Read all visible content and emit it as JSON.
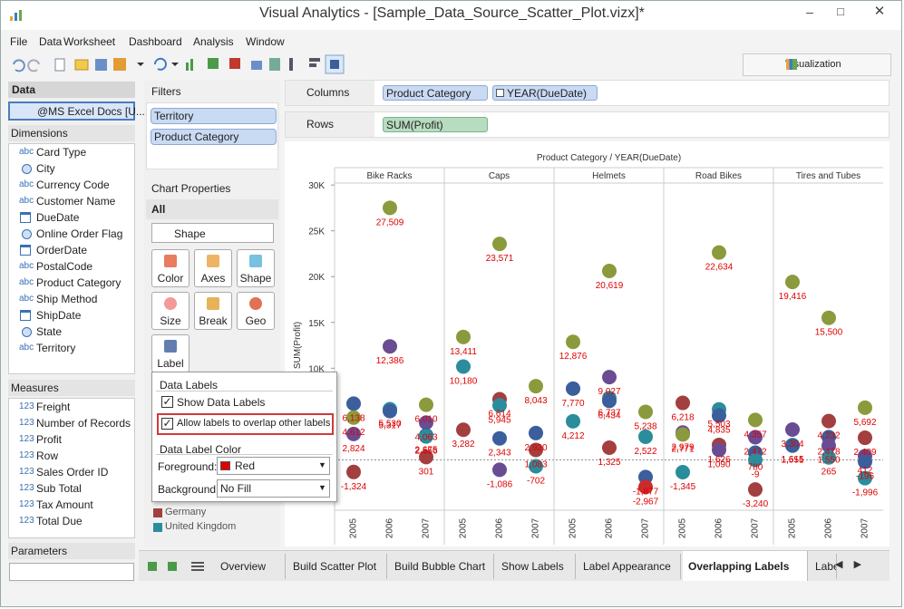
{
  "window": {
    "title": "Visual Analytics - [Sample_Data_Source_Scatter_Plot.vizx]*"
  },
  "menu": [
    "File",
    "Data",
    "Worksheet",
    "Dashboard",
    "Analysis",
    "Window"
  ],
  "visualization_button": "Visualization",
  "data_panel": {
    "title": "Data",
    "source": "@MS Excel Docs [U...",
    "dimensions_title": "Dimensions",
    "dimensions": [
      {
        "icon_text": "abc",
        "name": "Card Type"
      },
      {
        "icon": "geo",
        "name": "City"
      },
      {
        "icon_text": "abc",
        "name": "Currency Code"
      },
      {
        "icon_text": "abc",
        "name": "Customer Name"
      },
      {
        "icon": "date",
        "name": "DueDate"
      },
      {
        "icon": "geo",
        "name": "Online Order Flag"
      },
      {
        "icon": "date",
        "name": "OrderDate"
      },
      {
        "icon_text": "abc",
        "name": "PostalCode"
      },
      {
        "icon_text": "abc",
        "name": "Product Category"
      },
      {
        "icon_text": "abc",
        "name": "Ship Method"
      },
      {
        "icon": "date",
        "name": "ShipDate"
      },
      {
        "icon": "geo",
        "name": "State"
      },
      {
        "icon_text": "abc",
        "name": "Territory"
      }
    ],
    "measures_title": "Measures",
    "measures": [
      {
        "icon_text": "123",
        "name": "Freight"
      },
      {
        "icon_text": "123",
        "name": "Number of Records"
      },
      {
        "icon_text": "123",
        "name": "Profit"
      },
      {
        "icon_text": "123",
        "name": "Row"
      },
      {
        "icon_text": "123",
        "name": "Sales Order ID"
      },
      {
        "icon_text": "123",
        "name": "Sub Total"
      },
      {
        "icon_text": "123",
        "name": "Tax Amount"
      },
      {
        "icon_text": "123",
        "name": "Total Due"
      }
    ],
    "parameters_title": "Parameters"
  },
  "filters": {
    "title": "Filters",
    "items": [
      "Territory",
      "Product Category"
    ]
  },
  "chart_properties": {
    "title": "Chart Properties",
    "selected": "All",
    "mark_type": "Shape",
    "buttons": [
      "Color",
      "Axes",
      "Shape",
      "Size",
      "Break",
      "Geo",
      "Label"
    ]
  },
  "label_popup": {
    "data_labels_title": "Data Labels",
    "show_data_labels": {
      "label": "Show Data Labels",
      "checked": true
    },
    "allow_overlap": {
      "label": "Allow labels to overlap other labels",
      "checked": true
    },
    "color_title": "Data Label Color",
    "foreground_label": "Foreground:",
    "foreground_value": "Red",
    "foreground_color": "#e00000",
    "background_label": "Background:",
    "background_value": "No Fill"
  },
  "legend": [
    {
      "name": "Germany",
      "color": "#a33f3f"
    },
    {
      "name": "United Kingdom",
      "color": "#2b8c9c"
    }
  ],
  "shelves": {
    "columns": {
      "label": "Columns",
      "pills": [
        {
          "text": "Product Category"
        },
        {
          "text": "YEAR(DueDate)",
          "expand": true
        }
      ]
    },
    "rows": {
      "label": "Rows",
      "pills": [
        {
          "text": "SUM(Profit)",
          "measure": true
        }
      ]
    }
  },
  "tabs": [
    {
      "label": "Overview"
    },
    {
      "label": "Build Scatter Plot"
    },
    {
      "label": "Build Bubble Chart"
    },
    {
      "label": "Show Labels"
    },
    {
      "label": "Label Appearance"
    },
    {
      "label": "Overlapping Labels",
      "active": true
    },
    {
      "label": "Labe"
    }
  ],
  "chart_data": {
    "type": "scatter",
    "title": "Product Category / YEAR(DueDate)",
    "y_label": "SUM(Profit)",
    "ylim": [
      -5500,
      31300
    ],
    "yticks": [
      {
        "value": 10000,
        "label": "10K"
      },
      {
        "value": 15000,
        "label": "15K"
      },
      {
        "value": 20000,
        "label": "20K"
      },
      {
        "value": 25000,
        "label": "25K"
      },
      {
        "value": 30000,
        "label": "30K"
      }
    ],
    "zero_line": true,
    "panes": [
      {
        "name": "Bike Racks",
        "years": [
          {
            "label": "2005",
            "values": [
              6138,
              4612,
              2824,
              -1324
            ],
            "value_labels": [
              "6,138",
              "4,612",
              "2,824",
              "-1,324"
            ],
            "colors": [
              "#3b5e9c",
              "#8b9a3c",
              "#6a4c93",
              "#a33f3f"
            ]
          },
          {
            "label": "2006",
            "values": [
              27509,
              12386,
              5530,
              5317
            ],
            "value_labels": [
              "27,509",
              "12,386",
              "5,530",
              "5,317"
            ],
            "colors": [
              "#8b9a3c",
              "#6a4c93",
              "#2b8c9c",
              "#3b5e9c"
            ]
          },
          {
            "label": "2007",
            "values": [
              6010,
              4063,
              2675,
              2556,
              301
            ],
            "value_labels": [
              "6,010",
              "4,063",
              "2,675",
              "2,556",
              "301"
            ],
            "colors": [
              "#8b9a3c",
              "#6a4c93",
              "#3b5e9c",
              "#2b8c9c",
              "#a33f3f"
            ]
          }
        ]
      },
      {
        "name": "Caps",
        "years": [
          {
            "label": "2005",
            "values": [
              13411,
              10180,
              3282
            ],
            "value_labels": [
              "13,411",
              "10,180",
              "3,282"
            ],
            "colors": [
              "#8b9a3c",
              "#2b8c9c",
              "#a33f3f"
            ]
          },
          {
            "label": "2006",
            "values": [
              23571,
              6614,
              5945,
              2343,
              -1086
            ],
            "value_labels": [
              "23,571",
              "6,614",
              "5,945",
              "2,343",
              "-1,086"
            ],
            "colors": [
              "#8b9a3c",
              "#a33f3f",
              "#2b8c9c",
              "#3b5e9c",
              "#6a4c93"
            ]
          },
          {
            "label": "2007",
            "values": [
              8043,
              2920,
              1083,
              -702
            ],
            "value_labels": [
              "8,043",
              "2,920",
              "1,083",
              "-702"
            ],
            "colors": [
              "#8b9a3c",
              "#3b5e9c",
              "#a33f3f",
              "#2b8c9c"
            ]
          }
        ]
      },
      {
        "name": "Helmets",
        "years": [
          {
            "label": "2005",
            "values": [
              12876,
              7770,
              4212
            ],
            "value_labels": [
              "12,876",
              "7,770",
              "4,212"
            ],
            "colors": [
              "#8b9a3c",
              "#3b5e9c",
              "#2b8c9c"
            ]
          },
          {
            "label": "2006",
            "values": [
              20619,
              9027,
              6737,
              6434,
              1325
            ],
            "value_labels": [
              "20,619",
              "9,027",
              "6,737",
              "6,434",
              "1,325"
            ],
            "colors": [
              "#8b9a3c",
              "#6a4c93",
              "#2b8c9c",
              "#3b5e9c",
              "#a33f3f"
            ]
          },
          {
            "label": "2007",
            "values": [
              5238,
              2522,
              -1877,
              -2967
            ],
            "value_labels": [
              "5,238",
              "2,522",
              "-1,877",
              "-2,967"
            ],
            "colors": [
              "#8b9a3c",
              "#2b8c9c",
              "#3b5e9c",
              "#cc2b2b"
            ]
          }
        ]
      },
      {
        "name": "Road Bikes",
        "years": [
          {
            "label": "2005",
            "values": [
              6218,
              2979,
              2771,
              -1345
            ],
            "value_labels": [
              "6,218",
              "2,979",
              "2,771",
              "-1,345"
            ],
            "colors": [
              "#a33f3f",
              "#6a4c93",
              "#8b9a3c",
              "#2b8c9c"
            ]
          },
          {
            "label": "2006",
            "values": [
              22634,
              5503,
              4835,
              1626,
              1090
            ],
            "value_labels": [
              "22,634",
              "5,503",
              "4,835",
              "1,626",
              "1,090"
            ],
            "colors": [
              "#8b9a3c",
              "#2b8c9c",
              "#3b5e9c",
              "#a33f3f",
              "#6a4c93"
            ]
          },
          {
            "label": "2007",
            "values": [
              4357,
              2472,
              780,
              -9,
              -3240
            ],
            "value_labels": [
              "4,357",
              "2,472",
              "780",
              "-9",
              "-3,240"
            ],
            "colors": [
              "#8b9a3c",
              "#6a4c93",
              "#3b5e9c",
              "#2b8c9c",
              "#a33f3f"
            ]
          }
        ]
      },
      {
        "name": "Tires and Tubes",
        "years": [
          {
            "label": "2005",
            "values": [
              19416,
              3304,
              1615,
              1551
            ],
            "value_labels": [
              "19,416",
              "3,304",
              "1,615",
              "1,551"
            ],
            "colors": [
              "#8b9a3c",
              "#6a4c93",
              "#2b8c9c",
              "#3b5e9c"
            ]
          },
          {
            "label": "2006",
            "values": [
              15500,
              4232,
              2478,
              1550,
              265
            ],
            "value_labels": [
              "15,500",
              "4,232",
              "2,478",
              "1,550",
              "265"
            ],
            "colors": [
              "#8b9a3c",
              "#a33f3f",
              "#3b5e9c",
              "#6a4c93",
              "#2b8c9c"
            ]
          },
          {
            "label": "2007",
            "values": [
              5692,
              2409,
              412,
              -196,
              -1996
            ],
            "value_labels": [
              "5,692",
              "2,409",
              "412",
              "-196",
              "-1,996"
            ],
            "colors": [
              "#8b9a3c",
              "#a33f3f",
              "#6a4c93",
              "#3b5e9c",
              "#2b8c9c"
            ]
          }
        ]
      }
    ]
  }
}
